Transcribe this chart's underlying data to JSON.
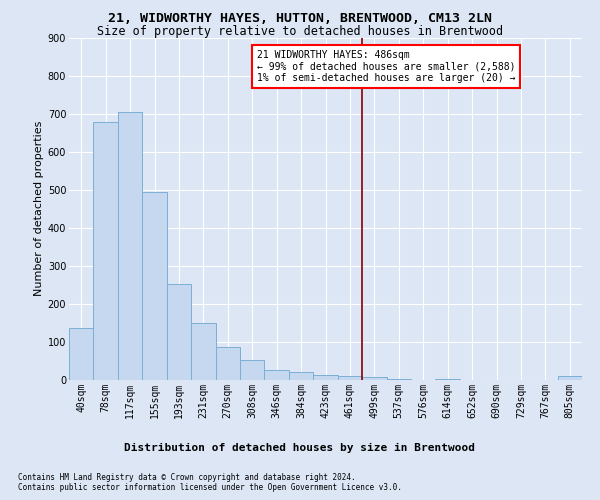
{
  "title": "21, WIDWORTHY HAYES, HUTTON, BRENTWOOD, CM13 2LN",
  "subtitle": "Size of property relative to detached houses in Brentwood",
  "xlabel": "Distribution of detached houses by size in Brentwood",
  "ylabel": "Number of detached properties",
  "bar_labels": [
    "40sqm",
    "78sqm",
    "117sqm",
    "155sqm",
    "193sqm",
    "231sqm",
    "270sqm",
    "308sqm",
    "346sqm",
    "384sqm",
    "423sqm",
    "461sqm",
    "499sqm",
    "537sqm",
    "576sqm",
    "614sqm",
    "652sqm",
    "690sqm",
    "729sqm",
    "767sqm",
    "805sqm"
  ],
  "bar_values": [
    137,
    677,
    703,
    493,
    252,
    150,
    86,
    52,
    27,
    20,
    12,
    10,
    8,
    2,
    1,
    2,
    1,
    1,
    0,
    0,
    10
  ],
  "bar_color": "#c5d8f0",
  "bar_edge_color": "#7bafd4",
  "background_color": "#dce6f5",
  "grid_color": "#ffffff",
  "ylim": [
    0,
    900
  ],
  "yticks": [
    0,
    100,
    200,
    300,
    400,
    500,
    600,
    700,
    800,
    900
  ],
  "annotation_line1": "21 WIDWORTHY HAYES: 486sqm",
  "annotation_line2": "← 99% of detached houses are smaller (2,588)",
  "annotation_line3": "1% of semi-detached houses are larger (20) →",
  "footer_line1": "Contains HM Land Registry data © Crown copyright and database right 2024.",
  "footer_line2": "Contains public sector information licensed under the Open Government Licence v3.0.",
  "title_fontsize": 9.5,
  "subtitle_fontsize": 8.5,
  "ylabel_fontsize": 8,
  "xlabel_fontsize": 8,
  "tick_fontsize": 7,
  "annotation_fontsize": 7,
  "footer_fontsize": 5.5
}
